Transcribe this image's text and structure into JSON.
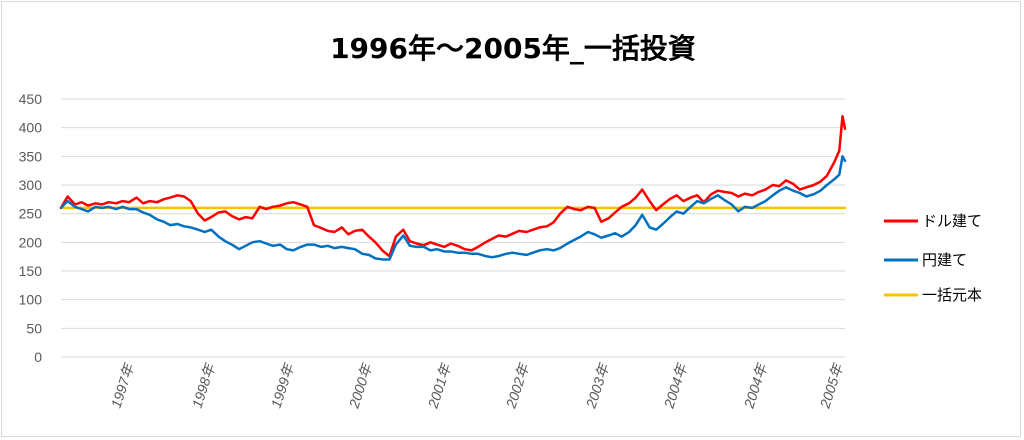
{
  "chart_data": {
    "type": "line",
    "title": "1996年～2005年_一括投資",
    "xlabel": "",
    "ylabel": "",
    "ylim": [
      0,
      450
    ],
    "y_ticks": [
      0,
      50,
      100,
      150,
      200,
      250,
      300,
      350,
      400,
      450
    ],
    "x_range": [
      1996.0,
      2005.55
    ],
    "x_tick_labels": [
      {
        "x": 1997.0,
        "label": "1997年"
      },
      {
        "x": 1998.0,
        "label": "1998年"
      },
      {
        "x": 1999.0,
        "label": "1999年"
      },
      {
        "x": 2000.0,
        "label": "2000年"
      },
      {
        "x": 2001.0,
        "label": "2001年"
      },
      {
        "x": 2002.0,
        "label": "2002年"
      },
      {
        "x": 2003.0,
        "label": "2003年"
      },
      {
        "x": 2004.0,
        "label": "2004年"
      },
      {
        "x": 2005.0,
        "label": "2004年"
      },
      {
        "x": 2005.9,
        "label": "2005年"
      }
    ],
    "grid": true,
    "legend_position": "right",
    "series": [
      {
        "name": "ドル建て",
        "color": "#ff0000",
        "points": [
          [
            1996.0,
            260
          ],
          [
            1996.08,
            280
          ],
          [
            1996.17,
            266
          ],
          [
            1996.25,
            270
          ],
          [
            1996.33,
            264
          ],
          [
            1996.42,
            268
          ],
          [
            1996.5,
            266
          ],
          [
            1996.58,
            270
          ],
          [
            1996.67,
            268
          ],
          [
            1996.75,
            272
          ],
          [
            1996.83,
            270
          ],
          [
            1996.92,
            278
          ],
          [
            1997.0,
            268
          ],
          [
            1997.08,
            272
          ],
          [
            1997.17,
            270
          ],
          [
            1997.25,
            275
          ],
          [
            1997.33,
            278
          ],
          [
            1997.42,
            282
          ],
          [
            1997.5,
            280
          ],
          [
            1997.58,
            272
          ],
          [
            1997.67,
            250
          ],
          [
            1997.75,
            238
          ],
          [
            1997.83,
            244
          ],
          [
            1997.92,
            252
          ],
          [
            1998.0,
            254
          ],
          [
            1998.08,
            246
          ],
          [
            1998.17,
            240
          ],
          [
            1998.25,
            244
          ],
          [
            1998.33,
            242
          ],
          [
            1998.42,
            262
          ],
          [
            1998.5,
            258
          ],
          [
            1998.58,
            262
          ],
          [
            1998.67,
            264
          ],
          [
            1998.75,
            268
          ],
          [
            1998.83,
            270
          ],
          [
            1998.92,
            266
          ],
          [
            1999.0,
            262
          ],
          [
            1999.08,
            230
          ],
          [
            1999.17,
            225
          ],
          [
            1999.25,
            220
          ],
          [
            1999.33,
            218
          ],
          [
            1999.42,
            226
          ],
          [
            1999.5,
            214
          ],
          [
            1999.58,
            220
          ],
          [
            1999.67,
            222
          ],
          [
            1999.75,
            210
          ],
          [
            1999.83,
            200
          ],
          [
            1999.92,
            185
          ],
          [
            2000.0,
            176
          ],
          [
            2000.08,
            210
          ],
          [
            2000.17,
            222
          ],
          [
            2000.25,
            202
          ],
          [
            2000.33,
            198
          ],
          [
            2000.42,
            195
          ],
          [
            2000.5,
            200
          ],
          [
            2000.58,
            196
          ],
          [
            2000.67,
            192
          ],
          [
            2000.75,
            198
          ],
          [
            2000.83,
            194
          ],
          [
            2000.92,
            188
          ],
          [
            2001.0,
            186
          ],
          [
            2001.08,
            192
          ],
          [
            2001.17,
            200
          ],
          [
            2001.25,
            206
          ],
          [
            2001.33,
            212
          ],
          [
            2001.42,
            210
          ],
          [
            2001.5,
            215
          ],
          [
            2001.58,
            220
          ],
          [
            2001.67,
            218
          ],
          [
            2001.75,
            222
          ],
          [
            2001.83,
            226
          ],
          [
            2001.92,
            228
          ],
          [
            2002.0,
            235
          ],
          [
            2002.08,
            250
          ],
          [
            2002.17,
            262
          ],
          [
            2002.25,
            258
          ],
          [
            2002.33,
            256
          ],
          [
            2002.42,
            262
          ],
          [
            2002.5,
            260
          ],
          [
            2002.58,
            236
          ],
          [
            2002.67,
            242
          ],
          [
            2002.75,
            252
          ],
          [
            2002.83,
            262
          ],
          [
            2002.92,
            268
          ],
          [
            2003.0,
            278
          ],
          [
            2003.08,
            292
          ],
          [
            2003.17,
            272
          ],
          [
            2003.25,
            256
          ],
          [
            2003.33,
            266
          ],
          [
            2003.42,
            276
          ],
          [
            2003.5,
            282
          ],
          [
            2003.58,
            272
          ],
          [
            2003.67,
            278
          ],
          [
            2003.75,
            282
          ],
          [
            2003.83,
            270
          ],
          [
            2003.92,
            284
          ],
          [
            2004.0,
            290
          ],
          [
            2004.08,
            288
          ],
          [
            2004.17,
            286
          ],
          [
            2004.25,
            280
          ],
          [
            2004.33,
            285
          ],
          [
            2004.42,
            282
          ],
          [
            2004.5,
            288
          ],
          [
            2004.58,
            292
          ],
          [
            2004.67,
            300
          ],
          [
            2004.75,
            298
          ],
          [
            2004.83,
            308
          ],
          [
            2004.92,
            302
          ],
          [
            2005.0,
            292
          ],
          [
            2005.08,
            296
          ],
          [
            2005.17,
            300
          ],
          [
            2005.25,
            306
          ],
          [
            2005.33,
            316
          ],
          [
            2005.42,
            340
          ],
          [
            2005.48,
            360
          ],
          [
            2005.52,
            420
          ],
          [
            2005.55,
            398
          ]
        ]
      },
      {
        "name": "円建て",
        "color": "#0070c0",
        "points": [
          [
            1996.0,
            260
          ],
          [
            1996.08,
            272
          ],
          [
            1996.17,
            262
          ],
          [
            1996.25,
            258
          ],
          [
            1996.33,
            254
          ],
          [
            1996.42,
            262
          ],
          [
            1996.5,
            260
          ],
          [
            1996.58,
            262
          ],
          [
            1996.67,
            258
          ],
          [
            1996.75,
            262
          ],
          [
            1996.83,
            258
          ],
          [
            1996.92,
            258
          ],
          [
            1997.0,
            252
          ],
          [
            1997.08,
            248
          ],
          [
            1997.17,
            240
          ],
          [
            1997.25,
            236
          ],
          [
            1997.33,
            230
          ],
          [
            1997.42,
            232
          ],
          [
            1997.5,
            228
          ],
          [
            1997.58,
            226
          ],
          [
            1997.67,
            222
          ],
          [
            1997.75,
            218
          ],
          [
            1997.83,
            222
          ],
          [
            1997.92,
            210
          ],
          [
            1998.0,
            202
          ],
          [
            1998.08,
            196
          ],
          [
            1998.17,
            188
          ],
          [
            1998.25,
            194
          ],
          [
            1998.33,
            200
          ],
          [
            1998.42,
            202
          ],
          [
            1998.5,
            198
          ],
          [
            1998.58,
            194
          ],
          [
            1998.67,
            196
          ],
          [
            1998.75,
            188
          ],
          [
            1998.83,
            186
          ],
          [
            1998.92,
            192
          ],
          [
            1999.0,
            196
          ],
          [
            1999.08,
            196
          ],
          [
            1999.17,
            192
          ],
          [
            1999.25,
            194
          ],
          [
            1999.33,
            190
          ],
          [
            1999.42,
            192
          ],
          [
            1999.5,
            190
          ],
          [
            1999.58,
            188
          ],
          [
            1999.67,
            180
          ],
          [
            1999.75,
            178
          ],
          [
            1999.83,
            172
          ],
          [
            1999.92,
            170
          ],
          [
            2000.0,
            170
          ],
          [
            2000.08,
            196
          ],
          [
            2000.17,
            212
          ],
          [
            2000.25,
            194
          ],
          [
            2000.33,
            192
          ],
          [
            2000.42,
            192
          ],
          [
            2000.5,
            186
          ],
          [
            2000.58,
            188
          ],
          [
            2000.67,
            184
          ],
          [
            2000.75,
            184
          ],
          [
            2000.83,
            182
          ],
          [
            2000.92,
            182
          ],
          [
            2001.0,
            180
          ],
          [
            2001.08,
            180
          ],
          [
            2001.17,
            176
          ],
          [
            2001.25,
            174
          ],
          [
            2001.33,
            176
          ],
          [
            2001.42,
            180
          ],
          [
            2001.5,
            182
          ],
          [
            2001.58,
            180
          ],
          [
            2001.67,
            178
          ],
          [
            2001.75,
            182
          ],
          [
            2001.83,
            186
          ],
          [
            2001.92,
            188
          ],
          [
            2002.0,
            186
          ],
          [
            2002.08,
            190
          ],
          [
            2002.17,
            198
          ],
          [
            2002.25,
            204
          ],
          [
            2002.33,
            210
          ],
          [
            2002.42,
            218
          ],
          [
            2002.5,
            214
          ],
          [
            2002.58,
            208
          ],
          [
            2002.67,
            212
          ],
          [
            2002.75,
            216
          ],
          [
            2002.83,
            210
          ],
          [
            2002.92,
            218
          ],
          [
            2003.0,
            230
          ],
          [
            2003.08,
            248
          ],
          [
            2003.17,
            226
          ],
          [
            2003.25,
            222
          ],
          [
            2003.33,
            232
          ],
          [
            2003.42,
            244
          ],
          [
            2003.5,
            254
          ],
          [
            2003.58,
            250
          ],
          [
            2003.67,
            262
          ],
          [
            2003.75,
            272
          ],
          [
            2003.83,
            268
          ],
          [
            2003.92,
            276
          ],
          [
            2004.0,
            282
          ],
          [
            2004.08,
            274
          ],
          [
            2004.17,
            266
          ],
          [
            2004.25,
            254
          ],
          [
            2004.33,
            262
          ],
          [
            2004.42,
            260
          ],
          [
            2004.5,
            266
          ],
          [
            2004.58,
            272
          ],
          [
            2004.67,
            282
          ],
          [
            2004.75,
            290
          ],
          [
            2004.83,
            296
          ],
          [
            2004.92,
            290
          ],
          [
            2005.0,
            286
          ],
          [
            2005.08,
            280
          ],
          [
            2005.17,
            284
          ],
          [
            2005.25,
            290
          ],
          [
            2005.33,
            300
          ],
          [
            2005.42,
            310
          ],
          [
            2005.48,
            318
          ],
          [
            2005.52,
            350
          ],
          [
            2005.55,
            342
          ]
        ]
      },
      {
        "name": "一括元本",
        "color": "#ffc000",
        "points": [
          [
            1996.0,
            260
          ],
          [
            2005.55,
            260
          ]
        ]
      }
    ]
  }
}
